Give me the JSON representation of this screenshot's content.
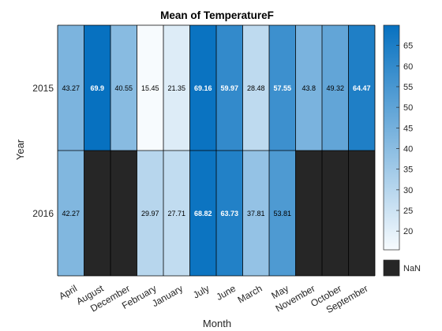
{
  "chart_data": {
    "type": "heatmap",
    "title": "Mean of TemperatureF",
    "xlabel": "Month",
    "ylabel": "Year",
    "x_categories": [
      "April",
      "August",
      "December",
      "February",
      "January",
      "July",
      "June",
      "March",
      "May",
      "November",
      "October",
      "September"
    ],
    "y_categories": [
      "2015",
      "2016"
    ],
    "values": [
      [
        43.27,
        69.9,
        40.55,
        15.45,
        21.35,
        69.16,
        59.97,
        28.48,
        57.55,
        43.8,
        49.32,
        64.47
      ],
      [
        42.27,
        null,
        null,
        29.97,
        27.71,
        68.82,
        63.73,
        37.81,
        53.81,
        null,
        null,
        null
      ]
    ],
    "cell_labels": [
      [
        "43.27",
        "69.9",
        "40.55",
        "15.45",
        "21.35",
        "69.16",
        "59.97",
        "28.48",
        "57.55",
        "43.8",
        "49.32",
        "64.47"
      ],
      [
        "42.27",
        "",
        "",
        "29.97",
        "27.71",
        "68.82",
        "63.73",
        "37.81",
        "53.81",
        "",
        "",
        ""
      ]
    ],
    "colorbar": {
      "min": 15.45,
      "max": 69.9,
      "ticks": [
        20,
        25,
        30,
        35,
        40,
        45,
        50,
        55,
        60,
        65
      ],
      "low_color": "#f7fbfe",
      "high_color": "#0771c0"
    },
    "missing": {
      "label": "NaN",
      "color": "#262626"
    },
    "grid": true
  }
}
